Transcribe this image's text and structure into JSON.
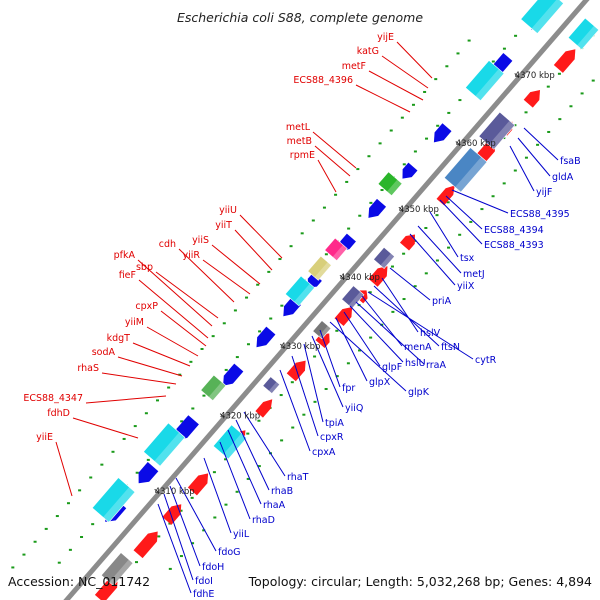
{
  "title": "Escherichia coli S88, complete genome",
  "footer": {
    "accession": "Accession: NC_011742",
    "topology": "Topology: circular; Length: 5,032,268 bp; Genes: 4,894"
  },
  "colors": {
    "backbone": "#8c8c8c",
    "red_gene": "#ff1a1a",
    "blue_gene": "#0a0ae6",
    "cyan_block": "#19d9e8",
    "steel_block": "#4a86c4",
    "slate_block": "#5a5a9a",
    "dots": "#1a9a1a",
    "red_label": "#e00000",
    "blue_label": "#0000cc"
  },
  "ticks": [
    {
      "text": "4310 kbp"
    },
    {
      "text": "4320 kbp"
    },
    {
      "text": "4330 kbp"
    },
    {
      "text": "4340 kbp"
    },
    {
      "text": "4350 kbp"
    },
    {
      "text": "4360 kbp"
    },
    {
      "text": "4370 kbp"
    }
  ],
  "red_labels": [
    "yijE",
    "katG",
    "metF",
    "ECS88_4396",
    "metL",
    "metB",
    "rpmE",
    "yiiU",
    "yiiT",
    "yiiS",
    "yiiR",
    "pfkA",
    "sbp",
    "cdh",
    "fieF",
    "cpxP",
    "yiiM",
    "kdgT",
    "sodA",
    "rhaS",
    "ECS88_4347",
    "fdhD",
    "yiiE"
  ],
  "blue_labels": [
    "fsaB",
    "gldA",
    "yijF",
    "ECS88_4395",
    "ECS88_4394",
    "ECS88_4393",
    "tsx",
    "metJ",
    "yiiX",
    "priA",
    "hslV",
    "ftsN",
    "cytR",
    "menA",
    "rraA",
    "hslU",
    "glpF",
    "glpX",
    "glpK",
    "fpr",
    "yiiQ",
    "tpiA",
    "cpxR",
    "cpxA",
    "rhaT",
    "rhaB",
    "rhaA",
    "rhaD",
    "yiiL",
    "fdoG",
    "fdoH",
    "fdoI",
    "fdhE"
  ]
}
